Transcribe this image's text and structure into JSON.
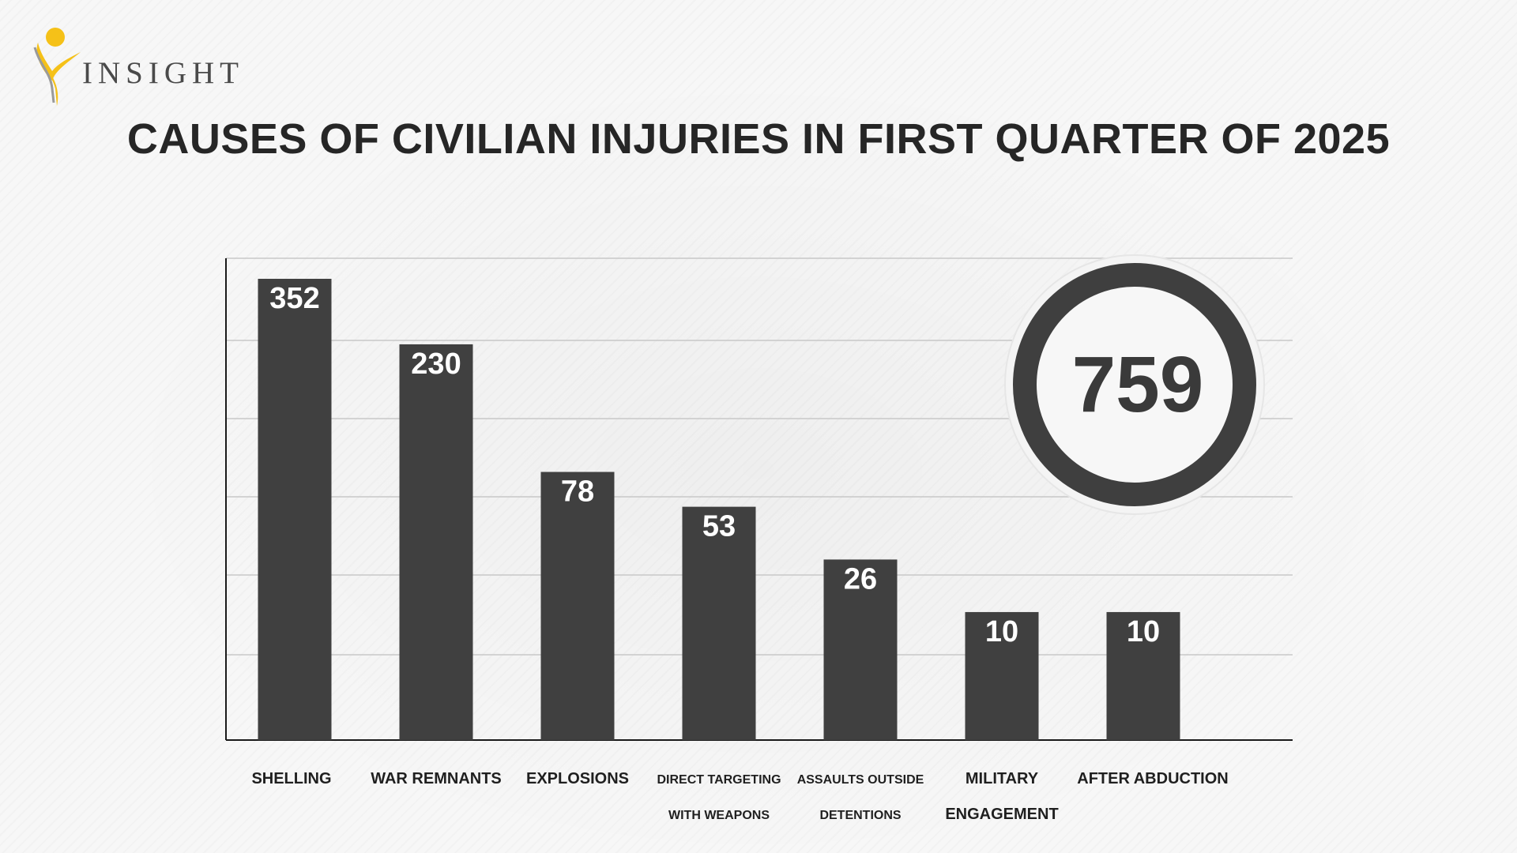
{
  "brand": {
    "name": "INSIGHT",
    "colors": {
      "logo_yellow": "#f5c118",
      "logo_grey": "#8a8a8a"
    }
  },
  "title": "CAUSES OF CIVILIAN INJURIES IN FIRST QUARTER OF 2025",
  "total_badge": {
    "value": "759",
    "ring_color": "#3f3f3f"
  },
  "colors": {
    "bar": "#404040",
    "grid": "#c8c8c8",
    "axis": "#1a1a1a"
  },
  "chart_data": {
    "type": "bar",
    "title": "CAUSES OF CIVILIAN INJURIES IN FIRST QUARTER OF 2025",
    "categories": [
      [
        "SHELLING"
      ],
      [
        "WAR REMNANTS"
      ],
      [
        "EXPLOSIONS"
      ],
      [
        "DIRECT TARGETING",
        "WITH WEAPONS"
      ],
      [
        "ASSAULTS OUTSIDE",
        "DETENTIONS"
      ],
      [
        "MILITARY",
        "ENGAGEMENT"
      ],
      [
        "AFTER ABDUCTION"
      ]
    ],
    "values": [
      352,
      230,
      78,
      53,
      26,
      10,
      10
    ],
    "xlabel": "",
    "ylabel": "",
    "grid": true,
    "legend": "none",
    "total": 759
  }
}
